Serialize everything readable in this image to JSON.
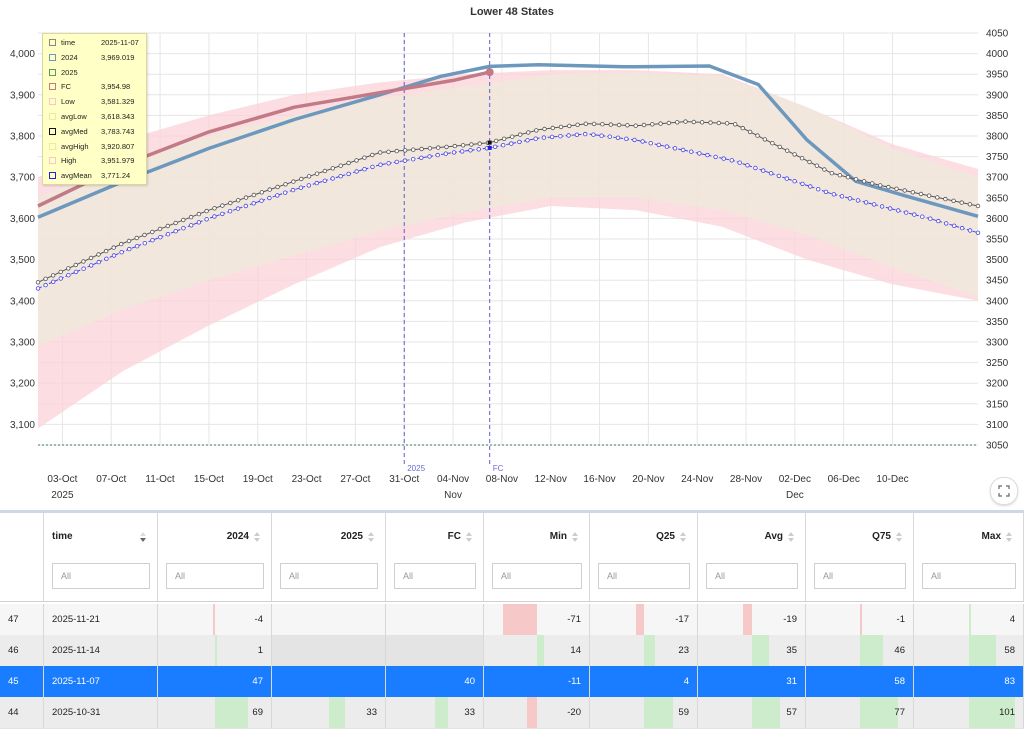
{
  "chart_data": {
    "type": "line",
    "title": "Lower 48 States",
    "x_start": "2025-10-01",
    "x_end": "2025-12-17",
    "x_ticks": [
      {
        "date": "2025-10-03",
        "label": "03-Oct",
        "sub": "2025"
      },
      {
        "date": "2025-10-07",
        "label": "07-Oct",
        "sub": ""
      },
      {
        "date": "2025-10-11",
        "label": "11-Oct",
        "sub": ""
      },
      {
        "date": "2025-10-15",
        "label": "15-Oct",
        "sub": ""
      },
      {
        "date": "2025-10-19",
        "label": "19-Oct",
        "sub": ""
      },
      {
        "date": "2025-10-23",
        "label": "23-Oct",
        "sub": ""
      },
      {
        "date": "2025-10-27",
        "label": "27-Oct",
        "sub": ""
      },
      {
        "date": "2025-10-31",
        "label": "31-Oct",
        "sub": ""
      },
      {
        "date": "2025-11-04",
        "label": "04-Nov",
        "sub": "Nov"
      },
      {
        "date": "2025-11-08",
        "label": "08-Nov",
        "sub": ""
      },
      {
        "date": "2025-11-12",
        "label": "12-Nov",
        "sub": ""
      },
      {
        "date": "2025-11-16",
        "label": "16-Nov",
        "sub": ""
      },
      {
        "date": "2025-11-20",
        "label": "20-Nov",
        "sub": ""
      },
      {
        "date": "2025-11-24",
        "label": "24-Nov",
        "sub": ""
      },
      {
        "date": "2025-11-28",
        "label": "28-Nov",
        "sub": ""
      },
      {
        "date": "2025-12-02",
        "label": "02-Dec",
        "sub": "Dec"
      },
      {
        "date": "2025-12-06",
        "label": "06-Dec",
        "sub": ""
      },
      {
        "date": "2025-12-10",
        "label": "10-Dec",
        "sub": ""
      }
    ],
    "y_left": {
      "min": 3050,
      "max": 4050,
      "ticks": [
        3100,
        3200,
        3300,
        3400,
        3500,
        3600,
        3700,
        3800,
        3900,
        4000
      ],
      "tick_labels": [
        "3,100",
        "3,200",
        "3,300",
        "3,400",
        "3,500",
        "3,600",
        "3,700",
        "3,800",
        "3,900",
        "4,000"
      ]
    },
    "y_right": {
      "min": 3050,
      "max": 4050,
      "ticks": [
        3050,
        3100,
        3150,
        3200,
        3250,
        3300,
        3350,
        3400,
        3450,
        3500,
        3550,
        3600,
        3650,
        3700,
        3750,
        3800,
        3850,
        3900,
        3950,
        4000,
        4050
      ],
      "tick_labels": [
        "3050",
        "3100",
        "3150",
        "3200",
        "3250",
        "3300",
        "3350",
        "3400",
        "3450",
        "3500",
        "3550",
        "3600",
        "3650",
        "3700",
        "3750",
        "3800",
        "3850",
        "3900",
        "3950",
        "4000",
        "4050"
      ]
    },
    "grid": true,
    "baseline": 3050,
    "markers": [
      {
        "date": "2025-10-31",
        "label": "2025"
      },
      {
        "date": "2025-11-07",
        "label": "FC"
      }
    ],
    "bands": [
      {
        "name": "Low-High",
        "color": "#fbd3d8",
        "x": [
          "2025-10-01",
          "2025-10-08",
          "2025-10-15",
          "2025-10-22",
          "2025-10-29",
          "2025-11-05",
          "2025-11-12",
          "2025-11-19",
          "2025-11-26",
          "2025-12-03",
          "2025-12-10",
          "2025-12-17"
        ],
        "low": [
          3090,
          3230,
          3340,
          3440,
          3530,
          3590,
          3630,
          3620,
          3580,
          3500,
          3440,
          3400
        ],
        "high": [
          3700,
          3790,
          3850,
          3900,
          3930,
          3950,
          3960,
          3960,
          3950,
          3870,
          3780,
          3720
        ]
      },
      {
        "name": "avgLow-avgHigh",
        "color": "#efead9",
        "x": [
          "2025-10-01",
          "2025-10-08",
          "2025-10-15",
          "2025-10-22",
          "2025-10-29",
          "2025-11-05",
          "2025-11-12",
          "2025-11-19",
          "2025-11-26",
          "2025-12-03",
          "2025-12-10",
          "2025-12-17"
        ],
        "low": [
          3290,
          3380,
          3450,
          3510,
          3570,
          3615,
          3650,
          3650,
          3620,
          3560,
          3480,
          3410
        ],
        "high": [
          3650,
          3740,
          3800,
          3850,
          3890,
          3920,
          3950,
          3955,
          3945,
          3870,
          3770,
          3700
        ]
      }
    ],
    "series": [
      {
        "name": "2024",
        "color": "#6c98bd",
        "x": [
          "2025-10-01",
          "2025-10-08",
          "2025-10-15",
          "2025-10-22",
          "2025-10-29",
          "2025-11-03",
          "2025-11-07",
          "2025-11-11",
          "2025-11-18",
          "2025-11-25",
          "2025-11-29",
          "2025-12-03",
          "2025-12-07",
          "2025-12-11",
          "2025-12-17"
        ],
        "y": [
          3603,
          3690,
          3770,
          3840,
          3900,
          3945,
          3969,
          3973,
          3968,
          3970,
          3925,
          3790,
          3690,
          3655,
          3605
        ]
      },
      {
        "name": "FC",
        "color": "#c27a86",
        "x": [
          "2025-10-01",
          "2025-10-08",
          "2025-10-15",
          "2025-10-22",
          "2025-10-29",
          "2025-11-01",
          "2025-11-04",
          "2025-11-07"
        ],
        "y": [
          3630,
          3730,
          3810,
          3870,
          3905,
          3920,
          3935,
          3955
        ]
      },
      {
        "name": "avgMed",
        "color": "#555555",
        "x": [
          "2025-10-01",
          "2025-10-08",
          "2025-10-15",
          "2025-10-22",
          "2025-10-29",
          "2025-11-04",
          "2025-11-07",
          "2025-11-11",
          "2025-11-15",
          "2025-11-19",
          "2025-11-23",
          "2025-11-27",
          "2025-12-01",
          "2025-12-05",
          "2025-12-09",
          "2025-12-13",
          "2025-12-17"
        ],
        "y": [
          3445,
          3540,
          3620,
          3690,
          3760,
          3775,
          3784,
          3815,
          3830,
          3825,
          3835,
          3830,
          3770,
          3710,
          3680,
          3655,
          3630
        ]
      },
      {
        "name": "avgMean",
        "color": "#4545e6",
        "x": [
          "2025-10-01",
          "2025-10-08",
          "2025-10-15",
          "2025-10-22",
          "2025-10-29",
          "2025-11-04",
          "2025-11-07",
          "2025-11-11",
          "2025-11-15",
          "2025-11-19",
          "2025-11-23",
          "2025-11-27",
          "2025-12-01",
          "2025-12-05",
          "2025-12-09",
          "2025-12-13",
          "2025-12-17"
        ],
        "y": [
          3430,
          3520,
          3600,
          3670,
          3730,
          3760,
          3771,
          3795,
          3805,
          3790,
          3765,
          3740,
          3700,
          3660,
          3630,
          3600,
          3565
        ]
      }
    ],
    "tooltip": [
      {
        "name": "time",
        "value": "2025-11-07",
        "color": "#888888"
      },
      {
        "name": "2024",
        "value": "3,969.019",
        "color": "#6c98bd"
      },
      {
        "name": "2025",
        "value": "",
        "color": "#5a9a5a"
      },
      {
        "name": "FC",
        "value": "3,954.98",
        "color": "#c27a86"
      },
      {
        "name": "Low",
        "value": "3,581.329",
        "color": "#f4c9c9"
      },
      {
        "name": "avgLow",
        "value": "3,618.343",
        "color": "#efe9a8"
      },
      {
        "name": "avgMed",
        "value": "3,783.743",
        "color": "#111111"
      },
      {
        "name": "avgHigh",
        "value": "3,920.807",
        "color": "#efe9a8"
      },
      {
        "name": "High",
        "value": "3,951.979",
        "color": "#f4c9c9"
      },
      {
        "name": "avgMean",
        "value": "3,771.24",
        "color": "#2222dd"
      }
    ]
  },
  "table": {
    "columns": [
      {
        "key": "idx",
        "label": ""
      },
      {
        "key": "time",
        "label": "time"
      },
      {
        "key": "y2024",
        "label": "2024"
      },
      {
        "key": "y2025",
        "label": "2025"
      },
      {
        "key": "fc",
        "label": "FC"
      },
      {
        "key": "min",
        "label": "Min"
      },
      {
        "key": "q25",
        "label": "Q25"
      },
      {
        "key": "avg",
        "label": "Avg"
      },
      {
        "key": "q75",
        "label": "Q75"
      },
      {
        "key": "max",
        "label": "Max"
      }
    ],
    "filter_placeholder": "All",
    "rows": [
      {
        "idx": "47",
        "time": "2025-11-21",
        "y2024": "-4",
        "y2025": "",
        "fc": "",
        "min": "-71",
        "q25": "-17",
        "avg": "-19",
        "q75": "-1",
        "max": "4",
        "selected": false
      },
      {
        "idx": "46",
        "time": "2025-11-14",
        "y2024": "1",
        "y2025": "",
        "fc": "",
        "min": "14",
        "q25": "23",
        "avg": "35",
        "q75": "46",
        "max": "58",
        "selected": false
      },
      {
        "idx": "45",
        "time": "2025-11-07",
        "y2024": "47",
        "y2025": "",
        "fc": "40",
        "min": "-11",
        "q25": "4",
        "avg": "31",
        "q75": "58",
        "max": "83",
        "selected": true
      },
      {
        "idx": "44",
        "time": "2025-10-31",
        "y2024": "69",
        "y2025": "33",
        "fc": "33",
        "min": "-20",
        "q25": "59",
        "avg": "57",
        "q75": "77",
        "max": "101",
        "selected": false
      }
    ]
  }
}
